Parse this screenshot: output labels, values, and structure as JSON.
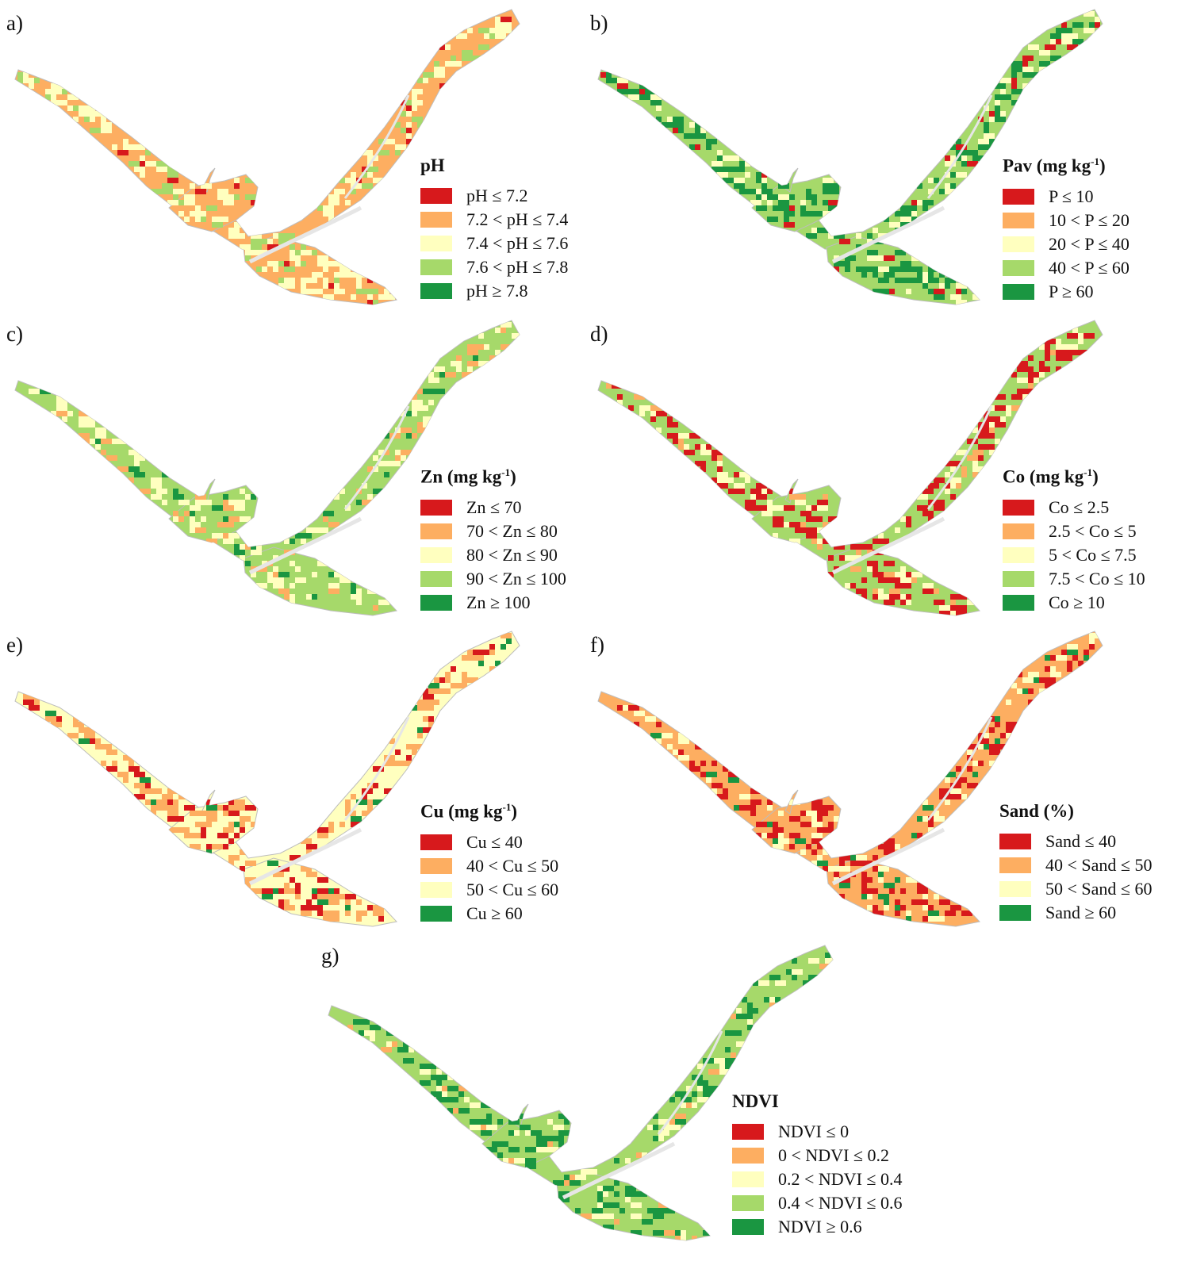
{
  "palette": {
    "red": "#d7191c",
    "orange": "#fdae61",
    "yellow": "#ffffbf",
    "lightgreen": "#a6d96a",
    "green": "#1a9641",
    "road": "#e6e6e6",
    "boundary": "#bdbdbd"
  },
  "panels": [
    {
      "id": "a",
      "label": "a)",
      "title": "pH",
      "title_sup": "",
      "title_end": "",
      "base_color": "#fdae61",
      "mix": [
        "#ffffbf",
        "#a6d96a",
        "#d7191c"
      ],
      "legend": [
        {
          "color": "#d7191c",
          "text": "pH ≤ 7.2"
        },
        {
          "color": "#fdae61",
          "text": "7.2 < pH ≤ 7.4"
        },
        {
          "color": "#ffffbf",
          "text": "7.4 < pH ≤ 7.6"
        },
        {
          "color": "#a6d96a",
          "text": "7.6 < pH ≤ 7.8"
        },
        {
          "color": "#1a9641",
          "text": "pH ≥ 7.8"
        }
      ]
    },
    {
      "id": "b",
      "label": "b)",
      "title": "Pav (mg kg",
      "title_sup": "-1",
      "title_end": ")",
      "base_color": "#a6d96a",
      "mix": [
        "#1a9641",
        "#ffffbf",
        "#d7191c"
      ],
      "legend": [
        {
          "color": "#d7191c",
          "text": "P ≤ 10"
        },
        {
          "color": "#fdae61",
          "text": "10 < P ≤ 20"
        },
        {
          "color": "#ffffbf",
          "text": "20 < P ≤ 40"
        },
        {
          "color": "#a6d96a",
          "text": "40 < P ≤ 60"
        },
        {
          "color": "#1a9641",
          "text": "P ≥ 60"
        }
      ]
    },
    {
      "id": "c",
      "label": "c)",
      "title": "Zn (mg kg",
      "title_sup": "-1",
      "title_end": ")",
      "base_color": "#a6d96a",
      "mix": [
        "#ffffbf",
        "#fdae61",
        "#1a9641"
      ],
      "legend": [
        {
          "color": "#d7191c",
          "text": "Zn ≤ 70"
        },
        {
          "color": "#fdae61",
          "text": "70 < Zn ≤ 80"
        },
        {
          "color": "#ffffbf",
          "text": "80 < Zn ≤ 90"
        },
        {
          "color": "#a6d96a",
          "text": "90 < Zn ≤ 100"
        },
        {
          "color": "#1a9641",
          "text": "Zn ≥ 100"
        }
      ]
    },
    {
      "id": "d",
      "label": "d)",
      "title": "Co (mg kg",
      "title_sup": "-1",
      "title_end": ")",
      "base_color": "#a6d96a",
      "mix": [
        "#d7191c",
        "#ffffbf",
        "#fdae61"
      ],
      "legend": [
        {
          "color": "#d7191c",
          "text": "Co ≤ 2.5"
        },
        {
          "color": "#fdae61",
          "text": "2.5 < Co ≤ 5"
        },
        {
          "color": "#ffffbf",
          "text": "5 < Co ≤ 7.5"
        },
        {
          "color": "#a6d96a",
          "text": "7.5 < Co ≤ 10"
        },
        {
          "color": "#1a9641",
          "text": "Co ≥ 10"
        }
      ]
    },
    {
      "id": "e",
      "label": "e)",
      "title": "Cu (mg kg",
      "title_sup": "-1",
      "title_end": ")",
      "base_color": "#ffffbf",
      "mix": [
        "#fdae61",
        "#d7191c",
        "#1a9641"
      ],
      "legend": [
        {
          "color": "#d7191c",
          "text": "Cu ≤ 40"
        },
        {
          "color": "#fdae61",
          "text": "40 < Cu ≤ 50"
        },
        {
          "color": "#ffffbf",
          "text": "50 < Cu ≤ 60"
        },
        {
          "color": "#1a9641",
          "text": "Cu ≥ 60"
        }
      ]
    },
    {
      "id": "f",
      "label": "f)",
      "title": "Sand (%)",
      "title_sup": "",
      "title_end": "",
      "base_color": "#fdae61",
      "mix": [
        "#d7191c",
        "#ffffbf",
        "#1a9641"
      ],
      "legend": [
        {
          "color": "#d7191c",
          "text": "Sand ≤ 40"
        },
        {
          "color": "#fdae61",
          "text": "40 < Sand ≤ 50"
        },
        {
          "color": "#ffffbf",
          "text": "50 < Sand ≤ 60"
        },
        {
          "color": "#1a9641",
          "text": "Sand ≥ 60"
        }
      ]
    },
    {
      "id": "g",
      "label": "g)",
      "title": "NDVI",
      "title_sup": "",
      "title_end": "",
      "base_color": "#a6d96a",
      "mix": [
        "#1a9641",
        "#ffffbf",
        "#fdae61"
      ],
      "legend": [
        {
          "color": "#d7191c",
          "text": "NDVI ≤ 0"
        },
        {
          "color": "#fdae61",
          "text": "0 < NDVI ≤ 0.2"
        },
        {
          "color": "#ffffbf",
          "text": "0.2 < NDVI ≤ 0.4"
        },
        {
          "color": "#a6d96a",
          "text": "0.4 < NDVI ≤ 0.6"
        },
        {
          "color": "#1a9641",
          "text": "NDVI ≥ 0.6"
        }
      ]
    }
  ]
}
